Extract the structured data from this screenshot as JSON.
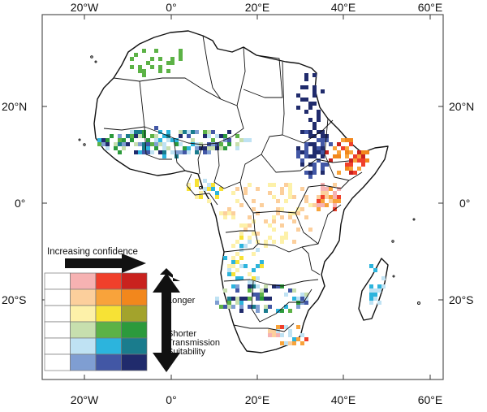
{
  "axes": {
    "top": [
      "20°W",
      "0°",
      "20°E",
      "40°E",
      "60°E"
    ],
    "bottom": [
      "20°W",
      "0°",
      "20°E",
      "40°E",
      "60°E"
    ],
    "left": [
      "20°N",
      "0°",
      "20°S"
    ],
    "right": [
      "20°N",
      "0°",
      "20°S"
    ]
  },
  "legend": {
    "arrow_label": "Increasing confidence",
    "longer_label": "Longer",
    "shorter_label": "Shorter",
    "transmission_label": "Transmission",
    "suitability_label": "Suitability",
    "palette": [
      [
        "#ffffff",
        "#f6b2b2",
        "#f0402b",
        "#c9221e"
      ],
      [
        "#ffffff",
        "#fccf9c",
        "#f8a33b",
        "#f2871c"
      ],
      [
        "#ffffff",
        "#fdf1a9",
        "#f7e235",
        "#a3a32c"
      ],
      [
        "#ffffff",
        "#c7dfae",
        "#5cb246",
        "#2c9a3c"
      ],
      [
        "#ffffff",
        "#bfe2f3",
        "#2cb4dd",
        "#1a7c8d"
      ],
      [
        "#ffffff",
        "#7f9ed2",
        "#4257a5",
        "#202b6c"
      ]
    ]
  },
  "colors": {
    "ocean": "#ffffff",
    "coast": "#111111",
    "frame": "#555555"
  }
}
